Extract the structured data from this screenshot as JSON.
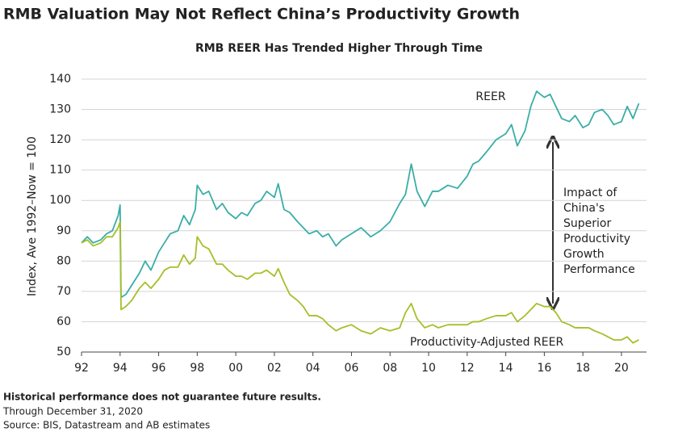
{
  "chart_data": {
    "type": "line",
    "title": "RMB Valuation May Not Reflect China’s Productivity Growth",
    "subtitle": "RMB REER Has Trended Higher Through Time",
    "y_label": "Index, Ave 1992–Now = 100",
    "x": [
      1992.0,
      1992.3,
      1992.6,
      1993.0,
      1993.3,
      1993.6,
      1993.9,
      1994.0,
      1994.05,
      1994.3,
      1994.6,
      1995.0,
      1995.3,
      1995.6,
      1996.0,
      1996.3,
      1996.6,
      1997.0,
      1997.3,
      1997.6,
      1997.9,
      1998.0,
      1998.3,
      1998.6,
      1999.0,
      1999.3,
      1999.6,
      2000.0,
      2000.3,
      2000.6,
      2001.0,
      2001.3,
      2001.6,
      2002.0,
      2002.2,
      2002.5,
      2002.8,
      2003.2,
      2003.5,
      2003.8,
      2004.2,
      2004.5,
      2004.8,
      2005.2,
      2005.5,
      2006.0,
      2006.5,
      2007.0,
      2007.5,
      2008.0,
      2008.5,
      2008.8,
      2009.1,
      2009.4,
      2009.8,
      2010.2,
      2010.5,
      2011.0,
      2011.5,
      2012.0,
      2012.3,
      2012.6,
      2013.0,
      2013.5,
      2014.0,
      2014.3,
      2014.6,
      2015.0,
      2015.3,
      2015.6,
      2016.0,
      2016.3,
      2016.6,
      2016.9,
      2017.3,
      2017.6,
      2018.0,
      2018.3,
      2018.6,
      2019.0,
      2019.3,
      2019.6,
      2020.0,
      2020.3,
      2020.6,
      2020.9
    ],
    "series": [
      {
        "name": "REER",
        "color": "#3aaea6",
        "values": [
          86,
          88,
          86,
          87,
          89,
          90,
          95,
          98.5,
          68,
          69,
          72,
          76,
          80,
          77,
          83,
          86,
          89,
          90,
          95,
          92,
          97,
          105,
          102,
          103,
          97,
          99,
          96,
          94,
          96,
          95,
          99,
          100,
          103,
          101,
          105.5,
          97,
          96,
          93,
          91,
          89,
          90,
          88,
          89,
          85,
          87,
          89,
          91,
          88,
          90,
          93,
          99,
          102,
          112,
          103,
          98,
          103,
          103,
          105,
          104,
          108,
          112,
          113,
          116,
          120,
          122,
          125,
          118,
          123,
          131,
          136,
          134,
          135,
          131,
          127,
          126,
          128,
          124,
          125,
          129,
          130,
          128,
          125,
          126,
          131,
          127,
          132
        ]
      },
      {
        "name": "Productivity-Adjusted REER",
        "color": "#a6bf2a",
        "values": [
          86,
          87,
          85,
          86,
          88,
          88,
          91,
          93,
          64,
          65,
          67,
          71,
          73,
          71,
          74,
          77,
          78,
          78,
          82,
          79,
          81,
          88,
          85,
          84,
          79,
          79,
          77,
          75,
          75,
          74,
          76,
          76,
          77,
          75,
          77.5,
          73,
          69,
          67,
          65,
          62,
          62,
          61,
          59,
          57,
          58,
          59,
          57,
          56,
          58,
          57,
          58,
          63,
          66,
          61,
          58,
          59,
          58,
          59,
          59,
          59,
          60,
          60,
          61,
          62,
          62,
          63,
          60,
          62,
          64,
          66,
          65,
          65,
          63,
          60,
          59,
          58,
          58,
          58,
          57,
          56,
          55,
          54,
          54,
          55,
          53,
          54
        ]
      }
    ],
    "annotation_lines": [
      "Impact of",
      "China's",
      "Superior",
      "Productivity",
      "Growth",
      "Performance"
    ],
    "xlim": [
      1992,
      2021.3
    ],
    "xticks": [
      {
        "value": 1992,
        "label": "92"
      },
      {
        "value": 1994,
        "label": "94"
      },
      {
        "value": 1996,
        "label": "96"
      },
      {
        "value": 1998,
        "label": "98"
      },
      {
        "value": 2000,
        "label": "00"
      },
      {
        "value": 2002,
        "label": "02"
      },
      {
        "value": 2004,
        "label": "04"
      },
      {
        "value": 2006,
        "label": "06"
      },
      {
        "value": 2008,
        "label": "08"
      },
      {
        "value": 2010,
        "label": "10"
      },
      {
        "value": 2012,
        "label": "12"
      },
      {
        "value": 2014,
        "label": "14"
      },
      {
        "value": 2016,
        "label": "16"
      },
      {
        "value": 2018,
        "label": "18"
      },
      {
        "value": 2020,
        "label": "20"
      }
    ],
    "ylim": [
      50,
      140
    ],
    "yticks": [
      50,
      60,
      70,
      80,
      90,
      100,
      110,
      120,
      130,
      140
    ],
    "grid": true
  },
  "footnotes": [
    "Historical performance does not guarantee future results.",
    "Through December 31, 2020",
    "Source: BIS, Datastream and AB estimates"
  ]
}
